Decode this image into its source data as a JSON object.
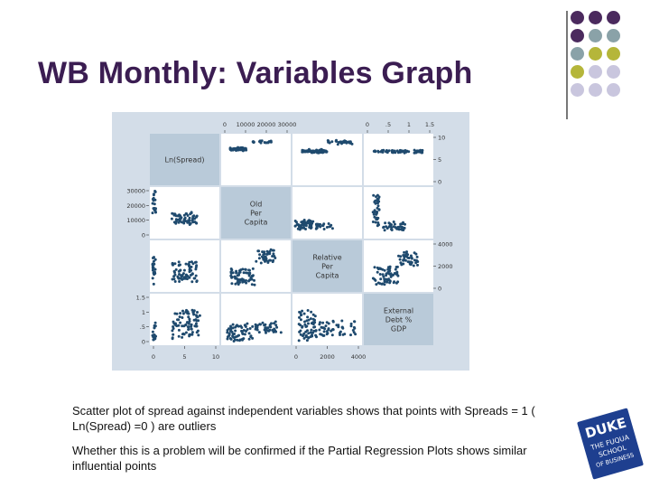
{
  "slide": {
    "title": "WB Monthly: Variables Graph",
    "captions": [
      "Scatter plot of spread against independent variables shows that points with Spreads = 1 ( Ln(Spread) =0 ) are outliers",
      "Whether this is a problem will be confirmed if the Partial Regression Plots shows similar influential points"
    ]
  },
  "colors": {
    "title": "#3b1d52",
    "purple": "#4b2a5e",
    "teal": "#8aa2a8",
    "olive": "#b5b63a",
    "lavender": "#c9c6de",
    "points": "#1f4a6e",
    "panel_bg": "#d3dde8",
    "diag_bg": "#b9cad9",
    "logo_blue": "#1e3f8f"
  },
  "decor_dots": [
    [
      "purple",
      "purple",
      "purple"
    ],
    [
      "purple",
      "teal",
      "teal"
    ],
    [
      "teal",
      "olive",
      "olive"
    ],
    [
      "olive",
      "lavender",
      "lavender"
    ],
    [
      "lavender",
      "lavender",
      "lavender"
    ]
  ],
  "chart_data": {
    "type": "scatter",
    "subtype": "scatter-matrix",
    "variables": [
      "Ln(Spread)",
      "Old Per Capita",
      "Relative Per Capita",
      "External Debt % GDP"
    ],
    "diagonal_labels": [
      [
        "Ln(Spread)"
      ],
      [
        "Old",
        "Per",
        "Capita"
      ],
      [
        "Relative",
        "Per",
        "Capita"
      ],
      [
        "External",
        "Debt %",
        "GDP"
      ]
    ],
    "top_ticks": [
      {
        "column": 1,
        "labels": [
          "0",
          "10000",
          "20000",
          "30000"
        ]
      },
      {
        "column": 3,
        "labels": [
          "0",
          ".5",
          "1",
          "1.5"
        ]
      }
    ],
    "bottom_ticks": [
      {
        "column": 0,
        "labels": [
          "0",
          "5",
          "10"
        ]
      },
      {
        "column": 2,
        "labels": [
          "0",
          "2000",
          "4000"
        ]
      }
    ],
    "left_ticks": [
      {
        "row": 1,
        "labels": [
          "30000",
          "20000",
          "10000",
          "0"
        ]
      },
      {
        "row": 3,
        "labels": [
          "1.5",
          "1",
          ".5",
          "0"
        ]
      }
    ],
    "right_ticks": [
      {
        "row": 0,
        "labels": [
          "10",
          "5",
          "0"
        ]
      },
      {
        "row": 2,
        "labels": [
          "4000",
          "2000",
          "0"
        ]
      }
    ],
    "grid": false,
    "legend": "none"
  },
  "logo": {
    "lines": [
      "DUKE",
      "THE FUQUA",
      "SCHOOL",
      "OF BUSINESS"
    ]
  }
}
